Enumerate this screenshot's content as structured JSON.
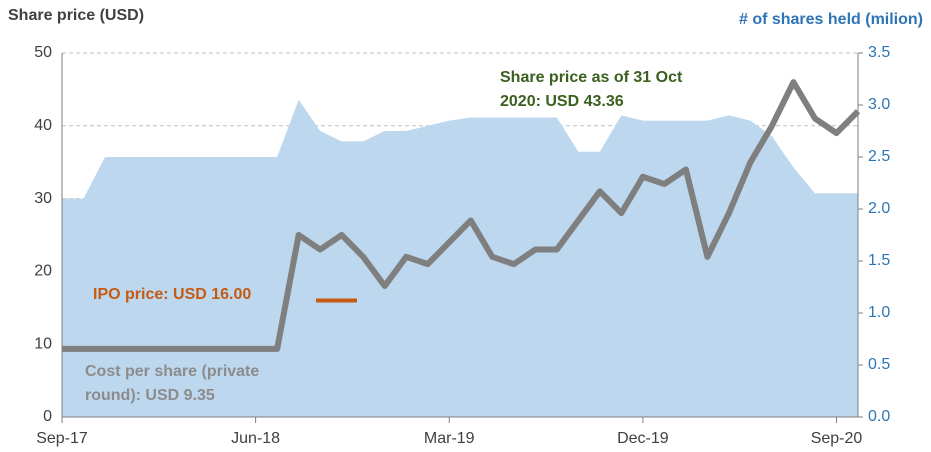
{
  "chart_data": {
    "type": "line",
    "title": "Share price (USD)",
    "y2_label": "# of shares held (milion)",
    "x": [
      "2017-09",
      "2017-10",
      "2017-11",
      "2017-12",
      "2018-01",
      "2018-02",
      "2018-03",
      "2018-04",
      "2018-05",
      "2018-06",
      "2018-07",
      "2018-08",
      "2018-09",
      "2018-10",
      "2018-11",
      "2018-12",
      "2019-01",
      "2019-02",
      "2019-03",
      "2019-04",
      "2019-05",
      "2019-06",
      "2019-07",
      "2019-08",
      "2019-09",
      "2019-10",
      "2019-11",
      "2019-12",
      "2020-01",
      "2020-02",
      "2020-03",
      "2020-04",
      "2020-05",
      "2020-06",
      "2020-07",
      "2020-08",
      "2020-09",
      "2020-10"
    ],
    "series": [
      {
        "name": "# of shares held (milion)",
        "type": "area",
        "axis": "y2",
        "color": "#bdd7ee",
        "values": [
          2.1,
          2.1,
          2.5,
          2.5,
          2.5,
          2.5,
          2.5,
          2.5,
          2.5,
          2.5,
          2.5,
          3.05,
          2.75,
          2.65,
          2.65,
          2.75,
          2.75,
          2.8,
          2.85,
          2.88,
          2.88,
          2.88,
          2.88,
          2.88,
          2.55,
          2.55,
          2.9,
          2.85,
          2.85,
          2.85,
          2.85,
          2.9,
          2.85,
          2.7,
          2.4,
          2.15,
          2.15,
          2.15
        ]
      },
      {
        "name": "Share price (USD)",
        "type": "line",
        "axis": "y",
        "color": "#7f7f7f",
        "values": [
          9.35,
          9.35,
          9.35,
          9.35,
          9.35,
          9.35,
          9.35,
          9.35,
          9.35,
          9.35,
          9.35,
          25,
          23,
          25,
          22,
          18,
          22,
          21,
          24,
          27,
          22,
          21,
          23,
          23,
          27,
          31,
          28,
          33,
          32,
          34,
          22,
          28,
          35,
          40,
          46,
          41,
          39,
          42
        ]
      }
    ],
    "xlim": [
      "2017-09",
      "2020-10"
    ],
    "xticks": [
      {
        "value": "2017-09",
        "label": "Sep-17"
      },
      {
        "value": "2018-06",
        "label": "Jun-18"
      },
      {
        "value": "2019-03",
        "label": "Mar-19"
      },
      {
        "value": "2019-12",
        "label": "Dec-19"
      },
      {
        "value": "2020-09",
        "label": "Sep-20"
      }
    ],
    "ylim": [
      0,
      50
    ],
    "yticks": [
      0,
      10,
      20,
      30,
      40,
      50
    ],
    "y2lim": [
      0,
      3.5
    ],
    "y2ticks": [
      {
        "value": 0,
        "label": "0.0"
      },
      {
        "value": 0.5,
        "label": "0.5"
      },
      {
        "value": 1,
        "label": "1.0"
      },
      {
        "value": 1.5,
        "label": "1.5"
      },
      {
        "value": 2,
        "label": "2.0"
      },
      {
        "value": 2.5,
        "label": "2.5"
      },
      {
        "value": 3,
        "label": "3.0"
      },
      {
        "value": 3.5,
        "label": "3.5"
      }
    ],
    "grid": true,
    "annotations": [
      {
        "lines": [
          "Share price as of 31 Oct",
          "2020: USD 43.36"
        ],
        "color": "#3a5f1e"
      },
      {
        "lines": [
          "IPO price: USD 16.00"
        ],
        "color": "#c55a11",
        "value": 16
      },
      {
        "lines": [
          "Cost per share (private",
          "round): USD 9.35"
        ],
        "color": "#8c8c8c"
      }
    ]
  }
}
